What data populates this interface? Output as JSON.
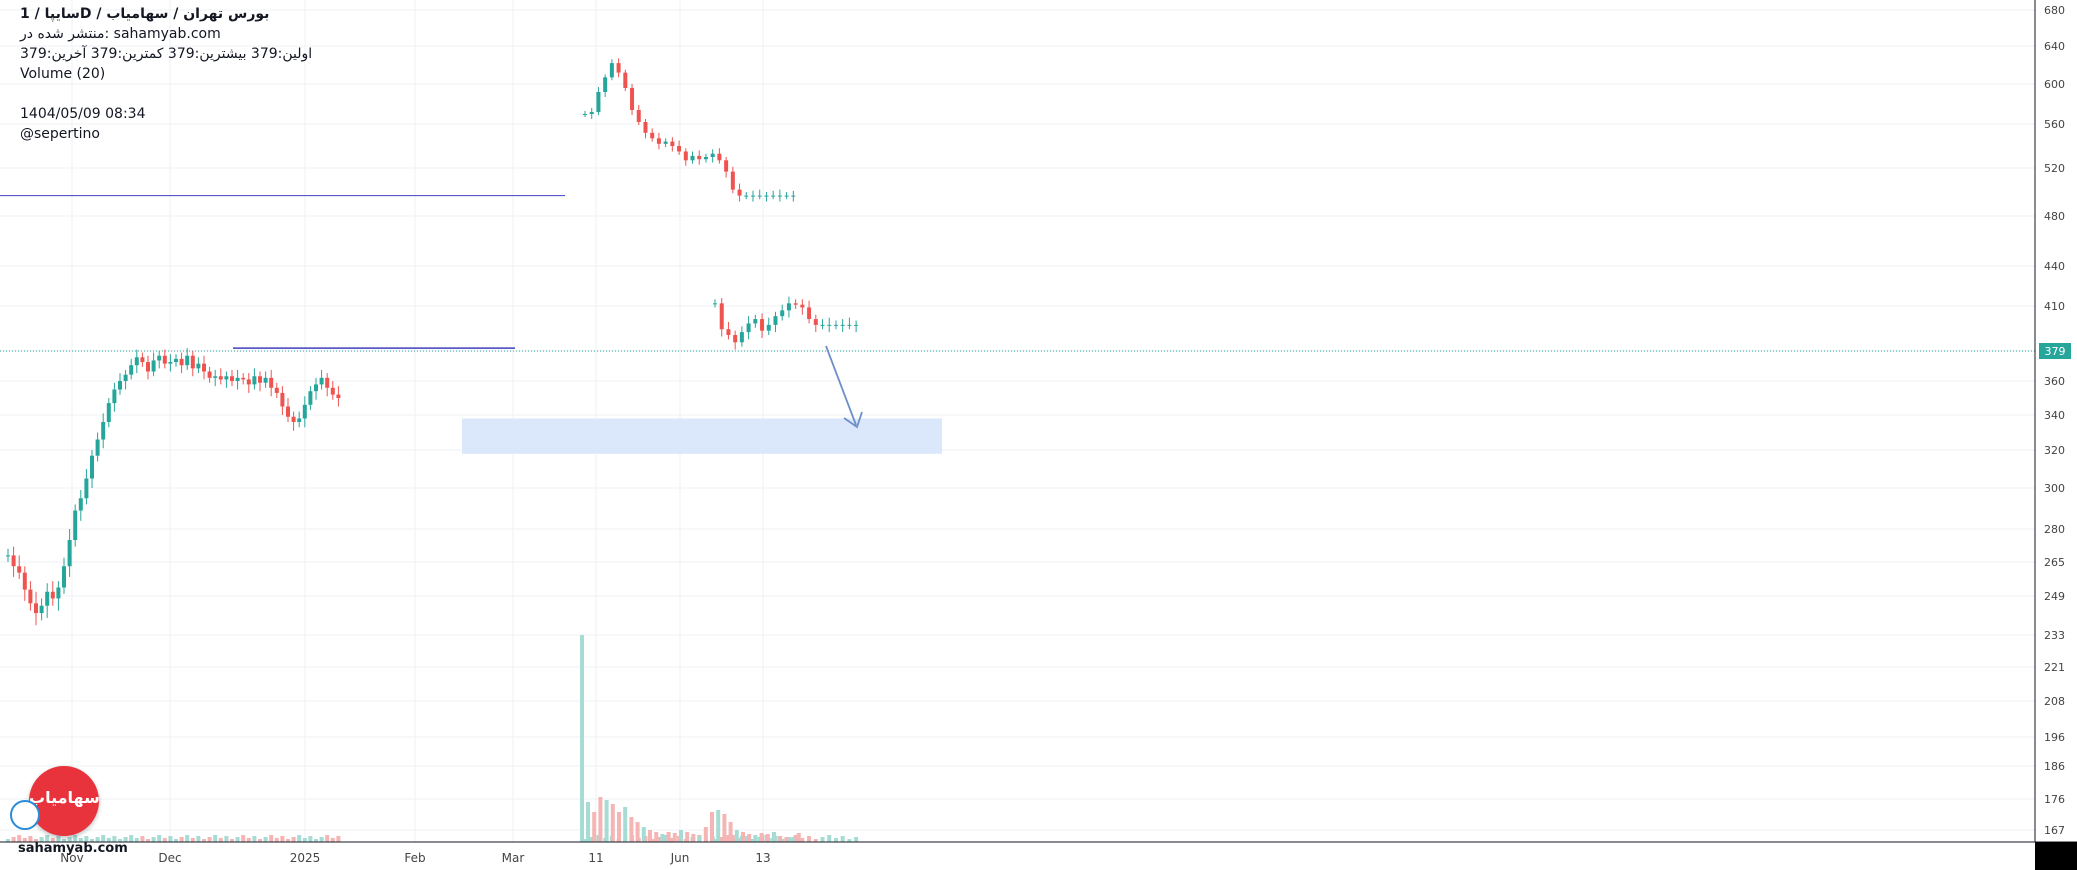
{
  "header": {
    "title": "سایپا /  1D  /  بورس تهران / سهامیاب",
    "published": "منتشر شده در: sahamyab.com",
    "ohlc": "اولین:379  بیشترین:379  کمترین:379  آخرین:379",
    "volume_label": "Volume (20)",
    "timestamp": "1404/05/09 08:34",
    "author": "@sepertino"
  },
  "logo": {
    "text": "سهامیاب",
    "site": "sahamyab.com"
  },
  "colors": {
    "up": "#26a69a",
    "down": "#ef5350",
    "vol_up": "#a7dcd5",
    "vol_down": "#f5b5b4",
    "price_line": "#26a69a",
    "price_badge": "#26a69a",
    "hline": "#3f3fbf",
    "zone": "#dbe7fb",
    "arrow": "#6b8fc6",
    "grid": "#eef0f3",
    "axis_text": "#444"
  },
  "chart_data": {
    "type": "candlestick",
    "y_axis_ticks": [
      167,
      176,
      186,
      196,
      208,
      221,
      233,
      249,
      265,
      280,
      300,
      320,
      340,
      360,
      379,
      410,
      440,
      480,
      520,
      560,
      600,
      640,
      680
    ],
    "x_axis_ticks": [
      "Nov",
      "Dec",
      "2025",
      "Feb",
      "Mar",
      "11",
      "Jun",
      "13"
    ],
    "last_price": 379,
    "price_labels": [
      "379"
    ],
    "annotations": [
      {
        "type": "horizontal_line",
        "price": 497,
        "color": "#3f3fbf"
      },
      {
        "type": "horizontal_line",
        "price": 381,
        "color": "#3f3fbf"
      },
      {
        "type": "zone",
        "price_top": 338,
        "price_bottom": 318
      },
      {
        "type": "arrow",
        "from_price": 381,
        "to_price": 339
      }
    ],
    "segments": [
      {
        "start": 0,
        "count": 60,
        "base": 268,
        "steps": [
          0,
          -5,
          -3,
          -8,
          -6,
          -4,
          3,
          6,
          -3,
          5,
          10,
          12,
          14,
          6,
          10,
          12,
          9,
          10,
          11,
          8,
          5,
          4,
          6,
          5,
          -3,
          -6,
          7,
          3,
          -5,
          1,
          2,
          -4,
          6,
          -8,
          3,
          -5,
          -4,
          1,
          -2,
          2,
          -3,
          2,
          -1,
          -3,
          5,
          -4,
          3,
          -6,
          -3,
          -8,
          -6,
          -3,
          2,
          8,
          8,
          4,
          4,
          -6,
          -4,
          -2
        ]
      },
      {
        "start": 64,
        "count": 32,
        "base": 570,
        "steps": [
          0,
          2,
          20,
          15,
          15,
          -10,
          -16,
          -22,
          -12,
          -10,
          -5,
          -5,
          2,
          -4,
          -5,
          -8,
          4,
          -3,
          2,
          3,
          -6,
          -10,
          -15,
          -5,
          0,
          0,
          0,
          0,
          0,
          0,
          0,
          0
        ]
      },
      {
        "start": 80,
        "count": 22,
        "base": 412,
        "steps": [
          0,
          -18,
          -4,
          -5,
          7,
          6,
          3,
          -8,
          4,
          6,
          4,
          5,
          -1,
          -2,
          -8,
          -4,
          0,
          0,
          0,
          0,
          0,
          0
        ]
      }
    ],
    "volume_peak": {
      "index": 64,
      "value": 233
    }
  }
}
